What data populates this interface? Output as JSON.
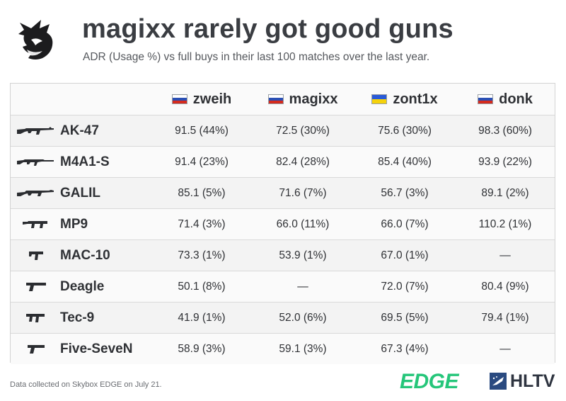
{
  "title": "magixx rarely got good guns",
  "subtitle": "ADR (Usage %) vs full buys in their last 100 matches over the last year.",
  "players": [
    {
      "name": "zweih",
      "flag": "ru"
    },
    {
      "name": "magixx",
      "flag": "ru"
    },
    {
      "name": "zont1x",
      "flag": "ua"
    },
    {
      "name": "donk",
      "flag": "ru"
    }
  ],
  "rows": [
    {
      "weapon": "AK-47",
      "icon": "ak47-icon",
      "values": [
        "91.5 (44%)",
        "72.5 (30%)",
        "75.6 (30%)",
        "98.3 (60%)"
      ]
    },
    {
      "weapon": "M4A1-S",
      "icon": "m4a1s-icon",
      "values": [
        "91.4 (23%)",
        "82.4 (28%)",
        "85.4 (40%)",
        "93.9 (22%)"
      ]
    },
    {
      "weapon": "GALIL",
      "icon": "galil-icon",
      "values": [
        "85.1 (5%)",
        "71.6 (7%)",
        "56.7 (3%)",
        "89.1 (2%)"
      ]
    },
    {
      "weapon": "MP9",
      "icon": "mp9-icon",
      "values": [
        "71.4 (3%)",
        "66.0 (11%)",
        "66.0 (7%)",
        "110.2 (1%)"
      ]
    },
    {
      "weapon": "MAC-10",
      "icon": "mac10-icon",
      "values": [
        "73.3 (1%)",
        "53.9 (1%)",
        "67.0 (1%)",
        "—"
      ]
    },
    {
      "weapon": "Deagle",
      "icon": "deagle-icon",
      "values": [
        "50.1 (8%)",
        "—",
        "72.0 (7%)",
        "80.4 (9%)"
      ]
    },
    {
      "weapon": "Tec-9",
      "icon": "tec9-icon",
      "values": [
        "41.9 (1%)",
        "52.0 (6%)",
        "69.5 (5%)",
        "79.4 (1%)"
      ]
    },
    {
      "weapon": "Five-SeveN",
      "icon": "fiveseven-icon",
      "values": [
        "58.9 (3%)",
        "59.1 (3%)",
        "67.3 (4%)",
        "—"
      ]
    }
  ],
  "footer": {
    "note": "Data collected on Skybox EDGE on July 21.",
    "edge_logo": "EDGE",
    "hltv_logo": "HLTV"
  },
  "colors": {
    "title": "#3a3d42",
    "edge_green": "#25c67a",
    "hltv_blue": "#2a4a80",
    "row_alt": "#f3f3f3"
  }
}
